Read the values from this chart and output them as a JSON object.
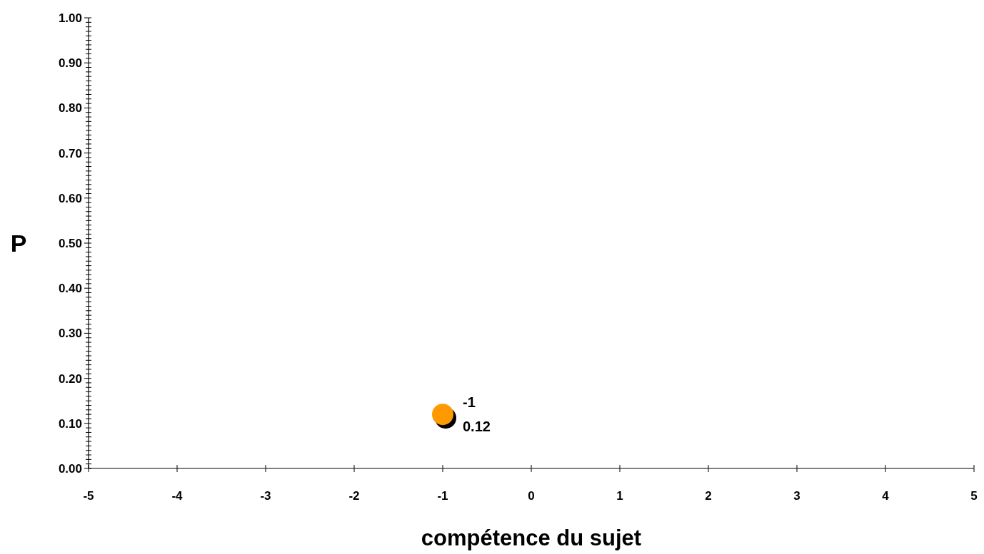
{
  "chart_data": {
    "type": "scatter",
    "xlabel": "compétence du sujet",
    "ylabel": "P",
    "series": [
      {
        "color": "#ff9900",
        "values": [
          0.12
        ],
        "x": [
          -1
        ]
      }
    ],
    "marker": "circle",
    "annotations": [
      {
        "text": "-1",
        "x": -1,
        "y": 0.12
      },
      {
        "text": "0.12",
        "x": -1,
        "y": 0.12
      }
    ],
    "xlim": [
      -5,
      5
    ],
    "xticks": [
      -5,
      -4,
      -3,
      -2,
      -1,
      0,
      1,
      2,
      3,
      4,
      5
    ],
    "ylim": [
      0,
      1
    ],
    "yticks": [
      {
        "value": 0,
        "label": "0.00"
      },
      {
        "value": 0.1,
        "label": "0.10"
      },
      {
        "value": 0.2,
        "label": "0.20"
      },
      {
        "value": 0.3,
        "label": "0.30"
      },
      {
        "value": 0.4,
        "label": "0.40"
      },
      {
        "value": 0.5,
        "label": "0.50"
      },
      {
        "value": 0.6,
        "label": "0.60"
      },
      {
        "value": 0.7,
        "label": "0.70"
      },
      {
        "value": 0.8,
        "label": "0.80"
      },
      {
        "value": 0.9,
        "label": "0.90"
      },
      {
        "value": 1,
        "label": "1.00"
      },
      {
        "value": 0.01,
        "label": null
      },
      {
        "value": 0.02,
        "label": null
      },
      {
        "value": 0.03,
        "label": null
      },
      {
        "value": 0.04,
        "label": null
      },
      {
        "value": 0.05,
        "label": null
      },
      {
        "value": 0.06,
        "label": null
      },
      {
        "value": 0.07,
        "label": null
      },
      {
        "value": 0.08,
        "label": null
      },
      {
        "value": 0.09,
        "label": null
      },
      {
        "value": 0.11,
        "label": null
      },
      {
        "value": 0.12,
        "label": null
      },
      {
        "value": 0.13,
        "label": null
      },
      {
        "value": 0.14,
        "label": null
      },
      {
        "value": 0.15,
        "label": null
      },
      {
        "value": 0.16,
        "label": null
      },
      {
        "value": 0.17,
        "label": null
      },
      {
        "value": 0.18,
        "label": null
      },
      {
        "value": 0.19,
        "label": null
      },
      {
        "value": 0.21,
        "label": null
      },
      {
        "value": 0.22,
        "label": null
      },
      {
        "value": 0.23,
        "label": null
      },
      {
        "value": 0.24,
        "label": null
      },
      {
        "value": 0.25,
        "label": null
      },
      {
        "value": 0.26,
        "label": null
      },
      {
        "value": 0.27,
        "label": null
      },
      {
        "value": 0.28,
        "label": null
      },
      {
        "value": 0.29,
        "label": null
      },
      {
        "value": 0.31,
        "label": null
      },
      {
        "value": 0.32,
        "label": null
      },
      {
        "value": 0.33,
        "label": null
      },
      {
        "value": 0.34,
        "label": null
      },
      {
        "value": 0.35,
        "label": null
      },
      {
        "value": 0.36,
        "label": null
      },
      {
        "value": 0.37,
        "label": null
      },
      {
        "value": 0.38,
        "label": null
      },
      {
        "value": 0.39,
        "label": null
      },
      {
        "value": 0.41,
        "label": null
      },
      {
        "value": 0.42,
        "label": null
      },
      {
        "value": 0.43,
        "label": null
      },
      {
        "value": 0.44,
        "label": null
      },
      {
        "value": 0.45,
        "label": null
      },
      {
        "value": 0.46,
        "label": null
      },
      {
        "value": 0.47,
        "label": null
      },
      {
        "value": 0.48,
        "label": null
      },
      {
        "value": 0.49,
        "label": null
      },
      {
        "value": 0.51,
        "label": null
      },
      {
        "value": 0.52,
        "label": null
      },
      {
        "value": 0.53,
        "label": null
      },
      {
        "value": 0.54,
        "label": null
      },
      {
        "value": 0.55,
        "label": null
      },
      {
        "value": 0.56,
        "label": null
      },
      {
        "value": 0.57,
        "label": null
      },
      {
        "value": 0.58,
        "label": null
      },
      {
        "value": 0.59,
        "label": null
      },
      {
        "value": 0.61,
        "label": null
      },
      {
        "value": 0.62,
        "label": null
      },
      {
        "value": 0.63,
        "label": null
      },
      {
        "value": 0.64,
        "label": null
      },
      {
        "value": 0.65,
        "label": null
      },
      {
        "value": 0.66,
        "label": null
      },
      {
        "value": 0.67,
        "label": null
      },
      {
        "value": 0.68,
        "label": null
      },
      {
        "value": 0.69,
        "label": null
      },
      {
        "value": 0.71,
        "label": null
      },
      {
        "value": 0.72,
        "label": null
      },
      {
        "value": 0.73,
        "label": null
      },
      {
        "value": 0.74,
        "label": null
      },
      {
        "value": 0.75,
        "label": null
      },
      {
        "value": 0.76,
        "label": null
      },
      {
        "value": 0.77,
        "label": null
      },
      {
        "value": 0.78,
        "label": null
      },
      {
        "value": 0.79,
        "label": null
      },
      {
        "value": 0.81,
        "label": null
      },
      {
        "value": 0.82,
        "label": null
      },
      {
        "value": 0.83,
        "label": null
      },
      {
        "value": 0.84,
        "label": null
      },
      {
        "value": 0.85,
        "label": null
      },
      {
        "value": 0.86,
        "label": null
      },
      {
        "value": 0.87,
        "label": null
      },
      {
        "value": 0.88,
        "label": null
      },
      {
        "value": 0.89,
        "label": null
      },
      {
        "value": 0.91,
        "label": null
      },
      {
        "value": 0.92,
        "label": null
      },
      {
        "value": 0.93,
        "label": null
      },
      {
        "value": 0.94,
        "label": null
      },
      {
        "value": 0.95,
        "label": null
      },
      {
        "value": 0.96,
        "label": null
      },
      {
        "value": 0.97,
        "label": null
      },
      {
        "value": 0.98,
        "label": null
      },
      {
        "value": 0.99,
        "label": null
      }
    ],
    "grid": false
  }
}
